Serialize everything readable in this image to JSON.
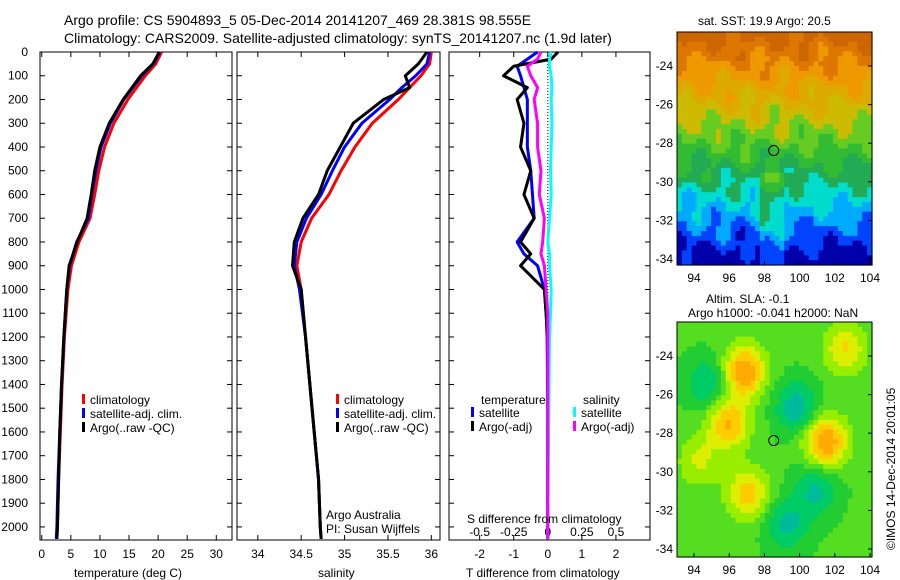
{
  "title_line1": "Argo profile: CS 5904893_5 05-Dec-2014 20141207_469 28.381S 98.555E",
  "title_line2": "Climatology: CARS2009. Satellite-adjusted climatology: synTS_20141207.nc (1.9d later)",
  "colors": {
    "climatology": "#ff0000",
    "satellite": "#0000ff",
    "argo": "#000000",
    "sal_satellite": "#00ffff",
    "sal_argo": "#ff00ff"
  },
  "chart_data": [
    {
      "type": "line",
      "name": "temperature",
      "xlabel": "temperature (deg C)",
      "ylabel": "depth",
      "xlim": [
        -0.3,
        32.7
      ],
      "ylim": [
        2055,
        0
      ],
      "xticks": [
        0,
        5,
        10,
        15,
        20,
        25,
        30
      ],
      "yticks": [
        0,
        100,
        200,
        300,
        400,
        500,
        600,
        700,
        800,
        900,
        1000,
        1100,
        1200,
        1300,
        1400,
        1500,
        1600,
        1700,
        1800,
        1900,
        2000
      ],
      "legend": [
        "climatology",
        "satellite-adj. clim.",
        "Argo(..raw -QC)"
      ],
      "depth": [
        0,
        50,
        100,
        200,
        300,
        400,
        500,
        600,
        700,
        800,
        900,
        1000,
        1200,
        1400,
        1600,
        1800,
        2000,
        2050
      ],
      "series": [
        {
          "name": "climatology",
          "color": "#ff0000",
          "values": [
            20.6,
            19.6,
            17.8,
            14.8,
            12.4,
            10.8,
            9.8,
            9.1,
            8.3,
            6.4,
            5.1,
            4.5,
            3.9,
            3.5,
            3.2,
            2.9,
            2.7,
            2.6
          ]
        },
        {
          "name": "satellite-adj. clim.",
          "color": "#0000ff",
          "values": [
            20.3,
            19.2,
            17.2,
            14.1,
            11.8,
            10.2,
            9.3,
            8.6,
            8.0,
            6.0,
            4.8,
            4.3,
            3.8,
            3.4,
            3.1,
            2.8,
            2.6,
            2.5
          ]
        },
        {
          "name": "Argo(..raw -QC)",
          "color": "#000000",
          "values": [
            20.2,
            19.1,
            17.0,
            14.0,
            11.6,
            10.0,
            9.1,
            8.5,
            7.8,
            6.1,
            4.7,
            4.3,
            3.8,
            3.4,
            3.1,
            2.9,
            2.7,
            2.6
          ]
        }
      ]
    },
    {
      "type": "line",
      "name": "salinity",
      "xlabel": "salinity",
      "xlim": [
        33.76,
        36.1
      ],
      "ylim": [
        2055,
        0
      ],
      "xticks": [
        34,
        34.5,
        35,
        35.5,
        36
      ],
      "legend": [
        "climatology",
        "satellite-adj. clim.",
        "Argo(..raw -QC)"
      ],
      "depth": [
        0,
        50,
        100,
        150,
        200,
        300,
        400,
        500,
        600,
        700,
        800,
        900,
        1000,
        1200,
        1400,
        1600,
        1800,
        2000,
        2050
      ],
      "series": [
        {
          "name": "climatology",
          "color": "#ff0000",
          "values": [
            36.0,
            35.98,
            35.88,
            35.75,
            35.62,
            35.32,
            35.12,
            34.96,
            34.82,
            34.62,
            34.5,
            34.45,
            34.5,
            34.55,
            34.6,
            34.65,
            34.7,
            34.72,
            34.73
          ]
        },
        {
          "name": "satellite-adj. clim.",
          "color": "#0000ff",
          "values": [
            35.98,
            35.95,
            35.82,
            35.66,
            35.52,
            35.2,
            35.0,
            34.86,
            34.73,
            34.56,
            34.45,
            34.42,
            34.48,
            34.55,
            34.6,
            34.65,
            34.7,
            34.72,
            34.73
          ]
        },
        {
          "name": "Argo(..raw -QC)",
          "color": "#000000",
          "values": [
            35.95,
            35.85,
            35.7,
            35.75,
            35.45,
            35.1,
            34.95,
            34.8,
            34.7,
            34.52,
            34.42,
            34.4,
            34.5,
            34.55,
            34.6,
            34.65,
            34.7,
            34.72,
            34.73
          ]
        }
      ]
    },
    {
      "type": "line",
      "name": "difference",
      "xlabel": "T difference from climatology",
      "xlabel2": "S difference from climatology",
      "xlim": [
        -2.9,
        3.0
      ],
      "ylim": [
        2055,
        0
      ],
      "xticks": [
        -2,
        -1,
        0,
        1,
        2
      ],
      "xticks2": [
        "-0.5",
        "-0.25",
        "0",
        "0.25",
        "0.5"
      ],
      "legend_temperature": {
        "title": "temperature",
        "items": [
          "satellite",
          "Argo(-adj)"
        ]
      },
      "legend_salinity": {
        "title": "salinity",
        "items": [
          "satellite",
          "Argo(-adj)"
        ]
      },
      "depth": [
        0,
        30,
        60,
        100,
        150,
        200,
        300,
        400,
        500,
        600,
        700,
        800,
        850,
        900,
        1000,
        1100,
        1200,
        1500,
        2000,
        2050
      ],
      "series": [
        {
          "name": "temperature satellite",
          "color": "#0000ff",
          "values": [
            -0.3,
            -0.6,
            -0.9,
            -0.8,
            -0.7,
            -0.6,
            -0.6,
            -0.6,
            -0.5,
            -0.45,
            -0.4,
            -0.9,
            -0.7,
            -0.3,
            -0.1,
            -0.05,
            -0.02,
            0,
            0,
            0
          ]
        },
        {
          "name": "temperature Argo(-adj)",
          "color": "#000000",
          "values": [
            0.3,
            0.1,
            -1.0,
            -1.3,
            -0.6,
            -0.9,
            -0.7,
            -0.8,
            -0.5,
            -0.7,
            -0.4,
            -0.8,
            -0.5,
            -0.8,
            -0.1,
            -0.05,
            0,
            0,
            0,
            0
          ]
        },
        {
          "name": "salinity satellite",
          "color": "#00ffff",
          "values": [
            0.1,
            0.05,
            0.05,
            0.1,
            0.12,
            0.1,
            0.12,
            0.1,
            0.08,
            0.1,
            0.05,
            0.0,
            0.05,
            0.05,
            0.1,
            0.08,
            0.05,
            0.03,
            0,
            0
          ]
        },
        {
          "name": "salinity Argo(-adj)",
          "color": "#ff00ff",
          "values": [
            -0.2,
            -0.3,
            -0.6,
            -0.5,
            -0.3,
            -0.4,
            -0.3,
            -0.3,
            -0.2,
            -0.25,
            -0.1,
            -0.15,
            -0.2,
            -0.1,
            -0.05,
            0,
            0,
            0,
            0,
            0
          ]
        }
      ]
    }
  ],
  "map_sst": {
    "title": "sat. SST: 19.9 Argo: 20.5",
    "xticks": [
      "94",
      "96",
      "98",
      "100",
      "102",
      "104"
    ],
    "yticks": [
      "-24",
      "-26",
      "-28",
      "-30",
      "-32",
      "-34"
    ]
  },
  "map_sla": {
    "title1": "Altim. SLA: -0.1",
    "title2": "Argo h1000: -0.041 h2000: NaN",
    "xticks": [
      "94",
      "96",
      "98",
      "100",
      "102",
      "104"
    ],
    "yticks": [
      "-24",
      "-26",
      "-28",
      "-30",
      "-32",
      "-34"
    ]
  },
  "credit1": "Argo Australia",
  "credit2": "PI: Susan Wijffels",
  "stamp": "©IMOS 14-Dec-2014 20:01:05"
}
